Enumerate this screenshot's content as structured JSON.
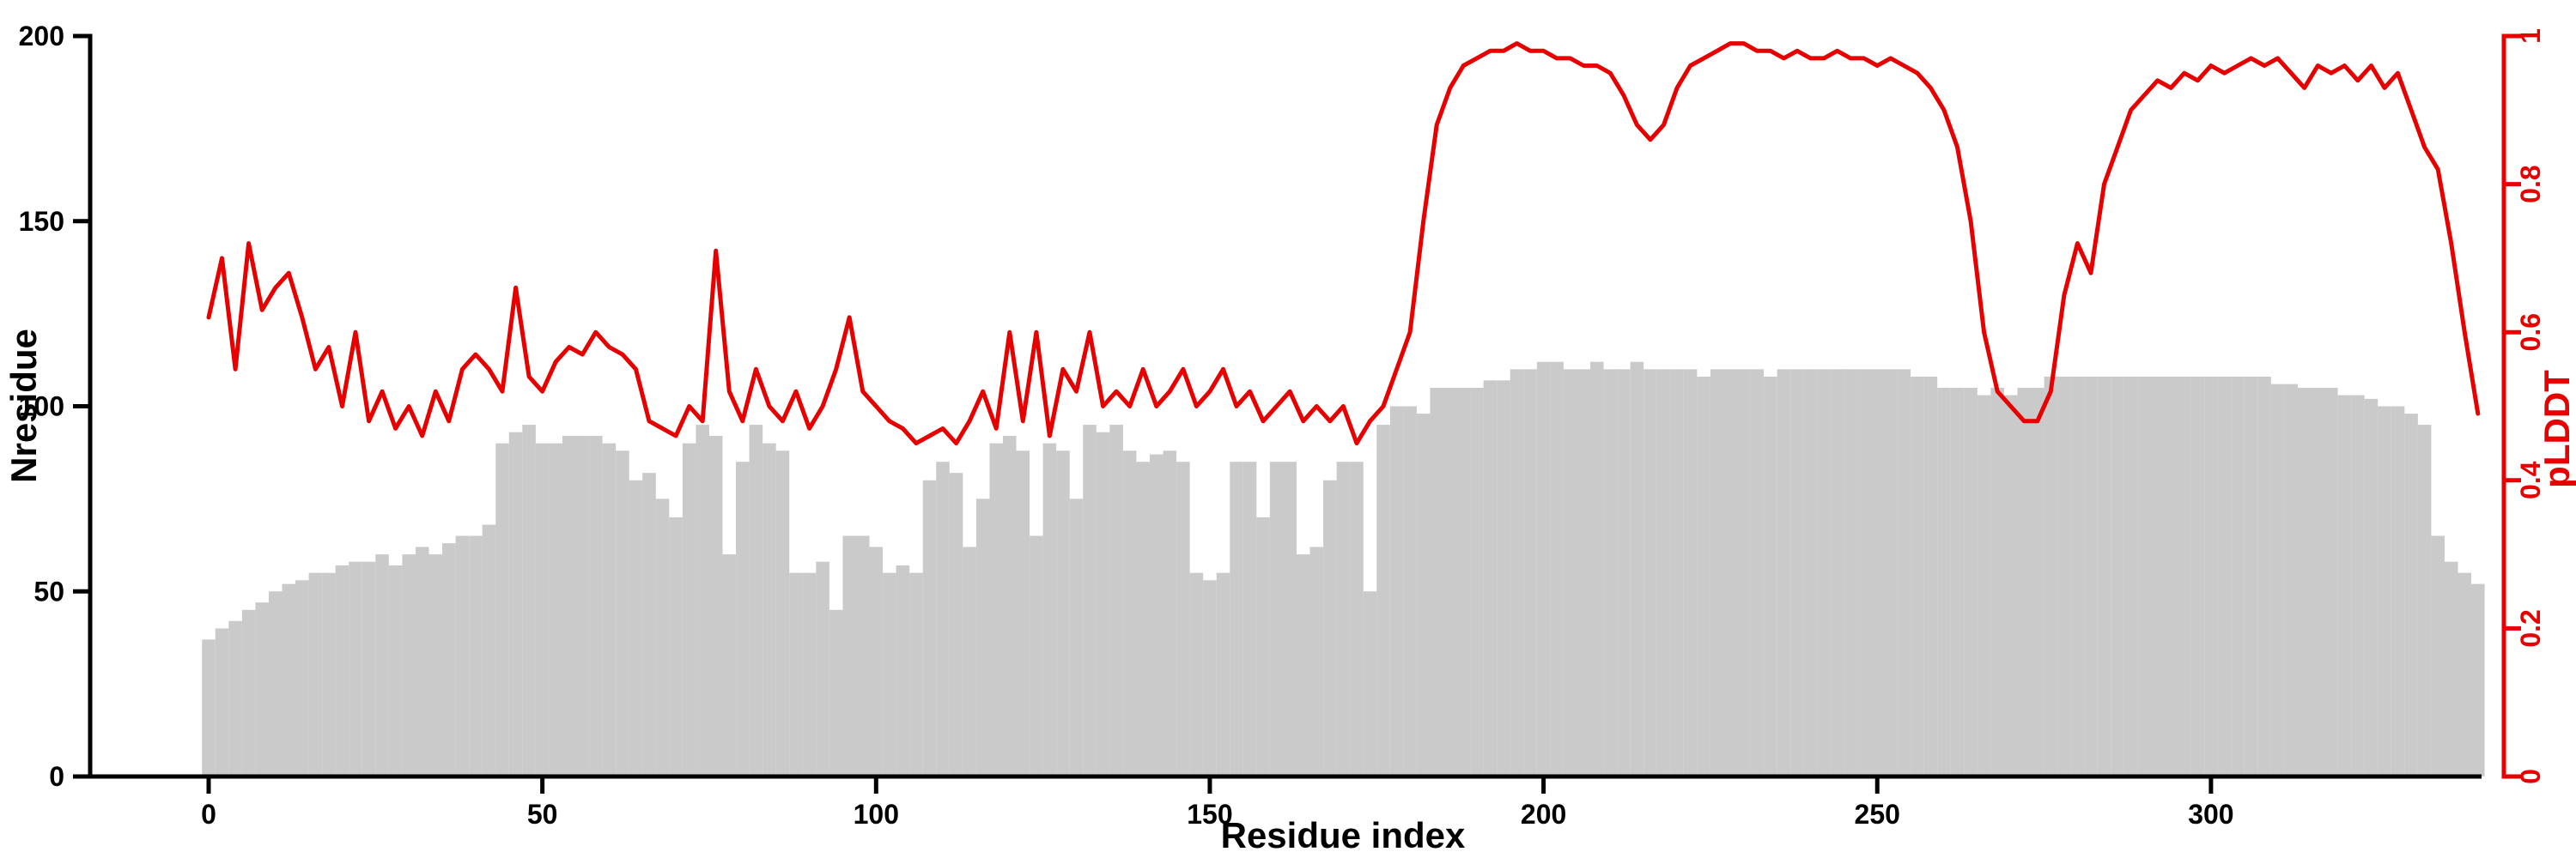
{
  "chart_data": {
    "type": "bar",
    "subtype": "dual-axis bar+line profile plot",
    "title": "",
    "xlabel": "Residue index",
    "ylabel_left": "Nresidue",
    "ylabel_right": "pLDDT",
    "xlim": [
      -18,
      341
    ],
    "ylim_left": [
      0,
      200
    ],
    "ylim_right": [
      0,
      1
    ],
    "xticks": [
      0,
      50,
      100,
      150,
      200,
      250,
      300
    ],
    "yticks_left": [
      0,
      50,
      100,
      150,
      200
    ],
    "yticks_right": [
      0,
      0.2,
      0.4,
      0.6,
      0.8,
      1
    ],
    "grid": false,
    "legend": "none",
    "x": [
      0,
      2,
      4,
      6,
      8,
      10,
      12,
      14,
      16,
      18,
      20,
      22,
      24,
      26,
      28,
      30,
      32,
      34,
      36,
      38,
      40,
      42,
      44,
      46,
      48,
      50,
      52,
      54,
      56,
      58,
      60,
      62,
      64,
      66,
      68,
      70,
      72,
      74,
      76,
      78,
      80,
      82,
      84,
      86,
      88,
      90,
      92,
      94,
      96,
      98,
      100,
      102,
      104,
      106,
      108,
      110,
      112,
      114,
      116,
      118,
      120,
      122,
      124,
      126,
      128,
      130,
      132,
      134,
      136,
      138,
      140,
      142,
      144,
      146,
      148,
      150,
      152,
      154,
      156,
      158,
      160,
      162,
      164,
      166,
      168,
      170,
      172,
      174,
      176,
      178,
      180,
      182,
      184,
      186,
      188,
      190,
      192,
      194,
      196,
      198,
      200,
      202,
      204,
      206,
      208,
      210,
      212,
      214,
      216,
      218,
      220,
      222,
      224,
      226,
      228,
      230,
      232,
      234,
      236,
      238,
      240,
      242,
      244,
      246,
      248,
      250,
      252,
      254,
      256,
      258,
      260,
      262,
      264,
      266,
      268,
      270,
      272,
      274,
      276,
      278,
      280,
      282,
      284,
      286,
      288,
      290,
      292,
      294,
      296,
      298,
      300,
      302,
      304,
      306,
      308,
      310,
      312,
      314,
      316,
      318,
      320,
      322,
      324,
      326,
      328,
      330,
      332,
      334,
      336,
      338,
      340
    ],
    "series": [
      {
        "name": "Nresidue",
        "plot_as": "bar",
        "axis": "left",
        "color": "#cacaca",
        "values": [
          37,
          40,
          42,
          45,
          47,
          50,
          52,
          53,
          55,
          55,
          57,
          58,
          58,
          60,
          57,
          60,
          62,
          60,
          63,
          65,
          65,
          68,
          90,
          93,
          95,
          90,
          90,
          92,
          92,
          92,
          90,
          88,
          80,
          82,
          75,
          70,
          90,
          95,
          92,
          60,
          85,
          95,
          90,
          88,
          55,
          55,
          58,
          45,
          65,
          65,
          62,
          55,
          57,
          55,
          80,
          85,
          82,
          62,
          75,
          90,
          92,
          88,
          65,
          90,
          88,
          75,
          95,
          93,
          95,
          88,
          85,
          87,
          88,
          85,
          55,
          53,
          55,
          85,
          85,
          70,
          85,
          85,
          60,
          62,
          80,
          85,
          85,
          50,
          95,
          100,
          100,
          98,
          105,
          105,
          105,
          105,
          107,
          107,
          110,
          110,
          112,
          112,
          110,
          110,
          112,
          110,
          110,
          112,
          110,
          110,
          110,
          110,
          108,
          110,
          110,
          110,
          110,
          108,
          110,
          110,
          110,
          110,
          110,
          110,
          110,
          110,
          110,
          110,
          108,
          108,
          105,
          105,
          105,
          103,
          105,
          103,
          105,
          105,
          108,
          108,
          108,
          108,
          108,
          108,
          108,
          108,
          108,
          108,
          108,
          108,
          108,
          108,
          108,
          108,
          108,
          106,
          106,
          105,
          105,
          105,
          103,
          103,
          102,
          100,
          100,
          98,
          95,
          65,
          58,
          55,
          52
        ]
      },
      {
        "name": "pLDDT",
        "plot_as": "line",
        "axis": "right",
        "color": "#e60000",
        "values": [
          0.62,
          0.7,
          0.55,
          0.72,
          0.63,
          0.66,
          0.68,
          0.62,
          0.55,
          0.58,
          0.5,
          0.6,
          0.48,
          0.52,
          0.47,
          0.5,
          0.46,
          0.52,
          0.48,
          0.55,
          0.57,
          0.55,
          0.52,
          0.66,
          0.54,
          0.52,
          0.56,
          0.58,
          0.57,
          0.6,
          0.58,
          0.57,
          0.55,
          0.48,
          0.47,
          0.46,
          0.5,
          0.48,
          0.71,
          0.52,
          0.48,
          0.55,
          0.5,
          0.48,
          0.52,
          0.47,
          0.5,
          0.55,
          0.62,
          0.52,
          0.5,
          0.48,
          0.47,
          0.45,
          0.46,
          0.47,
          0.45,
          0.48,
          0.52,
          0.47,
          0.6,
          0.48,
          0.6,
          0.46,
          0.55,
          0.52,
          0.6,
          0.5,
          0.52,
          0.5,
          0.55,
          0.5,
          0.52,
          0.55,
          0.5,
          0.52,
          0.55,
          0.5,
          0.52,
          0.48,
          0.5,
          0.52,
          0.48,
          0.5,
          0.48,
          0.5,
          0.45,
          0.48,
          0.5,
          0.55,
          0.6,
          0.75,
          0.88,
          0.93,
          0.96,
          0.97,
          0.98,
          0.98,
          0.99,
          0.98,
          0.98,
          0.97,
          0.97,
          0.96,
          0.96,
          0.95,
          0.92,
          0.88,
          0.86,
          0.88,
          0.93,
          0.96,
          0.97,
          0.98,
          0.99,
          0.99,
          0.98,
          0.98,
          0.97,
          0.98,
          0.97,
          0.97,
          0.98,
          0.97,
          0.97,
          0.96,
          0.97,
          0.96,
          0.95,
          0.93,
          0.9,
          0.85,
          0.75,
          0.6,
          0.52,
          0.5,
          0.48,
          0.48,
          0.52,
          0.65,
          0.72,
          0.68,
          0.8,
          0.85,
          0.9,
          0.92,
          0.94,
          0.93,
          0.95,
          0.94,
          0.96,
          0.95,
          0.96,
          0.97,
          0.96,
          0.97,
          0.95,
          0.93,
          0.96,
          0.95,
          0.96,
          0.94,
          0.96,
          0.93,
          0.95,
          0.9,
          0.85,
          0.82,
          0.72,
          0.6,
          0.49
        ]
      }
    ]
  },
  "colors": {
    "bar": "#cacaca",
    "line": "#e60000",
    "axis": "#000000",
    "background": "#ffffff"
  }
}
